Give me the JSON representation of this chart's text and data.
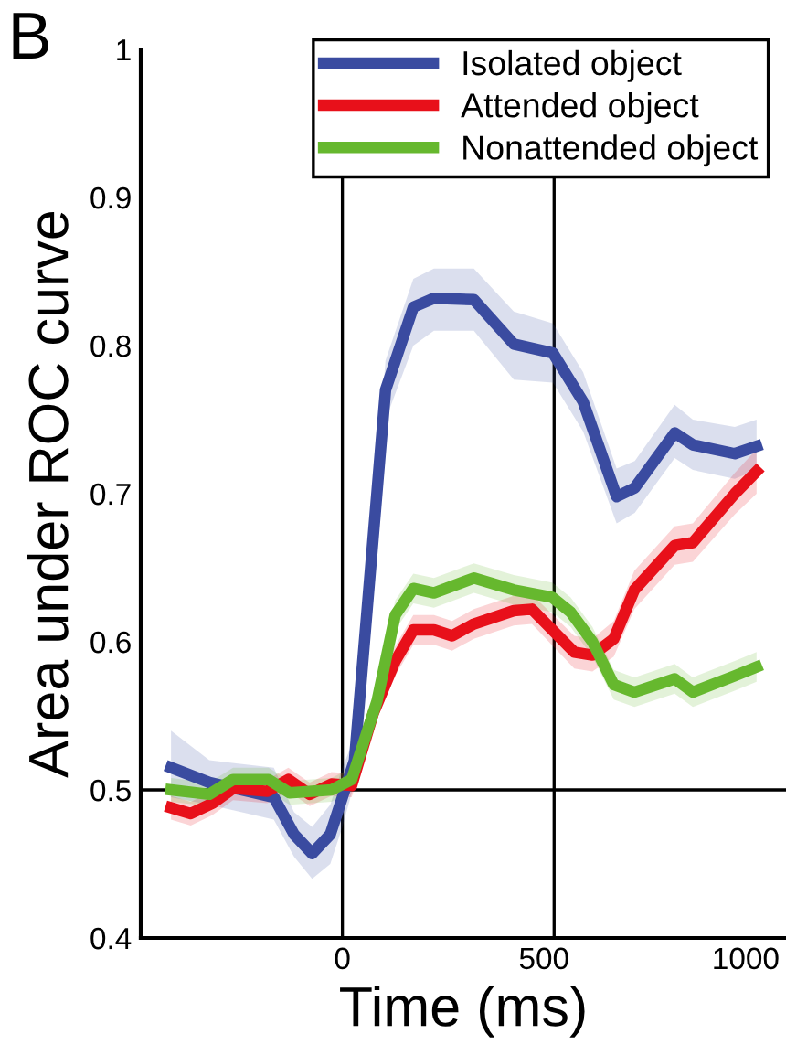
{
  "chart_data": {
    "type": "line",
    "xlabel": "Time (ms)",
    "ylabel": "Area under ROC curve",
    "annotations": [
      "B"
    ],
    "xlim": [
      -500,
      1100
    ],
    "ylim": [
      0.4,
      1
    ],
    "xticks": [
      0,
      500,
      1000
    ],
    "yticks": [
      0.4,
      0.5,
      0.6,
      0.7,
      0.8,
      0.9,
      1
    ],
    "grid": false,
    "legend": "top",
    "marker": "none",
    "line_style": "solid",
    "ref_lines": [
      {
        "axis": "y",
        "value": 0.5,
        "color": "#000000"
      },
      {
        "axis": "x",
        "value": 0,
        "color": "#000000"
      },
      {
        "axis": "x",
        "value": 525,
        "color": "#000000"
      }
    ],
    "series": [
      {
        "name": "Isolated object",
        "color": "#3a4ba0",
        "x": [
          -425,
          -330,
          -170,
          -120,
          -75,
          -30,
          0,
          30,
          107,
          176,
          227,
          326,
          425,
          522,
          597,
          680,
          725,
          824,
          869,
          973,
          1027
        ],
        "values": [
          0.515,
          0.505,
          0.495,
          0.47,
          0.457,
          0.47,
          0.495,
          0.52,
          0.77,
          0.826,
          0.832,
          0.831,
          0.801,
          0.795,
          0.762,
          0.698,
          0.704,
          0.741,
          0.733,
          0.727,
          0.732
        ],
        "lower": [
          0.495,
          0.49,
          0.48,
          0.455,
          0.44,
          0.45,
          0.475,
          0.505,
          0.75,
          0.8,
          0.81,
          0.81,
          0.777,
          0.775,
          0.742,
          0.68,
          0.687,
          0.724,
          0.716,
          0.71,
          0.716
        ],
        "upper": [
          0.54,
          0.52,
          0.515,
          0.485,
          0.475,
          0.49,
          0.515,
          0.535,
          0.79,
          0.845,
          0.852,
          0.852,
          0.823,
          0.815,
          0.782,
          0.717,
          0.722,
          0.76,
          0.75,
          0.745,
          0.75
        ]
      },
      {
        "name": "Attended object",
        "color": "#e8101a",
        "x": [
          -425,
          -376,
          -322,
          -271,
          -186,
          -134,
          -81,
          -27,
          23,
          77,
          131,
          176,
          227,
          272,
          326,
          425,
          470,
          575,
          620,
          673,
          724,
          824,
          869,
          973,
          1027
        ],
        "values": [
          0.488,
          0.484,
          0.491,
          0.501,
          0.499,
          0.507,
          0.497,
          0.504,
          0.503,
          0.552,
          0.587,
          0.608,
          0.608,
          0.604,
          0.612,
          0.621,
          0.622,
          0.593,
          0.591,
          0.602,
          0.635,
          0.665,
          0.667,
          0.7,
          0.715
        ],
        "lower": [
          0.48,
          0.476,
          0.483,
          0.493,
          0.491,
          0.499,
          0.489,
          0.496,
          0.495,
          0.542,
          0.577,
          0.598,
          0.598,
          0.594,
          0.602,
          0.611,
          0.612,
          0.582,
          0.58,
          0.59,
          0.622,
          0.652,
          0.654,
          0.686,
          0.7
        ],
        "upper": [
          0.496,
          0.492,
          0.499,
          0.509,
          0.507,
          0.515,
          0.505,
          0.512,
          0.511,
          0.562,
          0.597,
          0.618,
          0.618,
          0.614,
          0.622,
          0.631,
          0.632,
          0.604,
          0.602,
          0.614,
          0.648,
          0.678,
          0.68,
          0.714,
          0.73
        ]
      },
      {
        "name": "Nonattended object",
        "color": "#66b82e",
        "x": [
          -425,
          -330,
          -271,
          -183,
          -131,
          -27,
          23,
          86,
          131,
          176,
          227,
          326,
          425,
          520,
          566,
          620,
          673,
          724,
          824,
          869,
          973,
          1027
        ],
        "values": [
          0.5,
          0.497,
          0.507,
          0.507,
          0.498,
          0.5,
          0.507,
          0.56,
          0.618,
          0.636,
          0.633,
          0.643,
          0.635,
          0.63,
          0.62,
          0.6,
          0.571,
          0.566,
          0.575,
          0.566,
          0.577,
          0.583
        ],
        "lower": [
          0.492,
          0.489,
          0.499,
          0.499,
          0.49,
          0.492,
          0.499,
          0.55,
          0.608,
          0.626,
          0.623,
          0.633,
          0.625,
          0.62,
          0.61,
          0.59,
          0.561,
          0.556,
          0.565,
          0.556,
          0.567,
          0.573
        ],
        "upper": [
          0.508,
          0.505,
          0.515,
          0.515,
          0.506,
          0.508,
          0.515,
          0.57,
          0.628,
          0.646,
          0.643,
          0.653,
          0.645,
          0.64,
          0.63,
          0.61,
          0.581,
          0.576,
          0.585,
          0.576,
          0.587,
          0.593
        ]
      }
    ]
  }
}
